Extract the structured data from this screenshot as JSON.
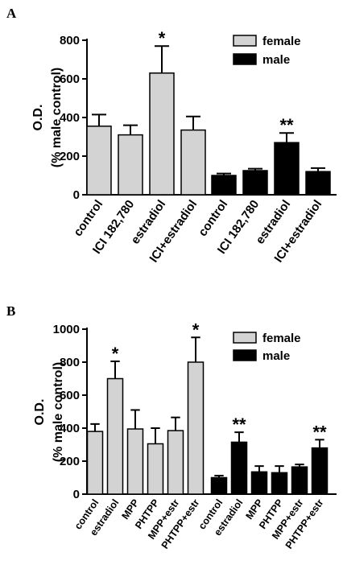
{
  "colors": {
    "female": "#d3d3d3",
    "male": "#000000",
    "axis": "#000000"
  },
  "chart_data": [
    {
      "type": "bar",
      "panel_label": "A",
      "ylabel": "O.D.",
      "ylabel2": "(% male control)",
      "ylim": [
        0,
        800
      ],
      "yticks": [
        0,
        200,
        400,
        600,
        800
      ],
      "legend": {
        "position": "top-right",
        "entries": [
          "female",
          "male"
        ]
      },
      "series": [
        {
          "name": "female",
          "categories": [
            "control",
            "ICI 182,780",
            "estradiol",
            "ICI+estradiol"
          ],
          "values": [
            355,
            310,
            630,
            335
          ],
          "errors": [
            60,
            50,
            140,
            70
          ],
          "significance": [
            "",
            "",
            "*",
            ""
          ]
        },
        {
          "name": "male",
          "categories": [
            "control",
            "ICI 182,780",
            "estradiol",
            "ICI+estradiol"
          ],
          "values": [
            100,
            125,
            270,
            120
          ],
          "errors": [
            10,
            10,
            50,
            18
          ],
          "significance": [
            "",
            "",
            "**",
            ""
          ]
        }
      ]
    },
    {
      "type": "bar",
      "panel_label": "B",
      "ylabel": "O.D.",
      "ylabel2": "(% male control)",
      "ylim": [
        0,
        1000
      ],
      "yticks": [
        0,
        200,
        400,
        600,
        800,
        1000
      ],
      "legend": {
        "position": "top-right",
        "entries": [
          "female",
          "male"
        ]
      },
      "series": [
        {
          "name": "female",
          "categories": [
            "control",
            "estradiol",
            "MPP",
            "PHTPP",
            "MPP+estr",
            "PHTPP+estr"
          ],
          "values": [
            380,
            700,
            395,
            305,
            385,
            800
          ],
          "errors": [
            45,
            105,
            115,
            95,
            80,
            150
          ],
          "significance": [
            "",
            "*",
            "",
            "",
            "",
            "*"
          ]
        },
        {
          "name": "male",
          "categories": [
            "control",
            "estradiol",
            "MPP",
            "PHTPP",
            "MPP+estr",
            "PHTPP+estr"
          ],
          "values": [
            100,
            315,
            135,
            130,
            165,
            280
          ],
          "errors": [
            12,
            60,
            35,
            40,
            15,
            50
          ],
          "significance": [
            "",
            "**",
            "",
            "",
            "",
            "**"
          ]
        }
      ]
    }
  ]
}
